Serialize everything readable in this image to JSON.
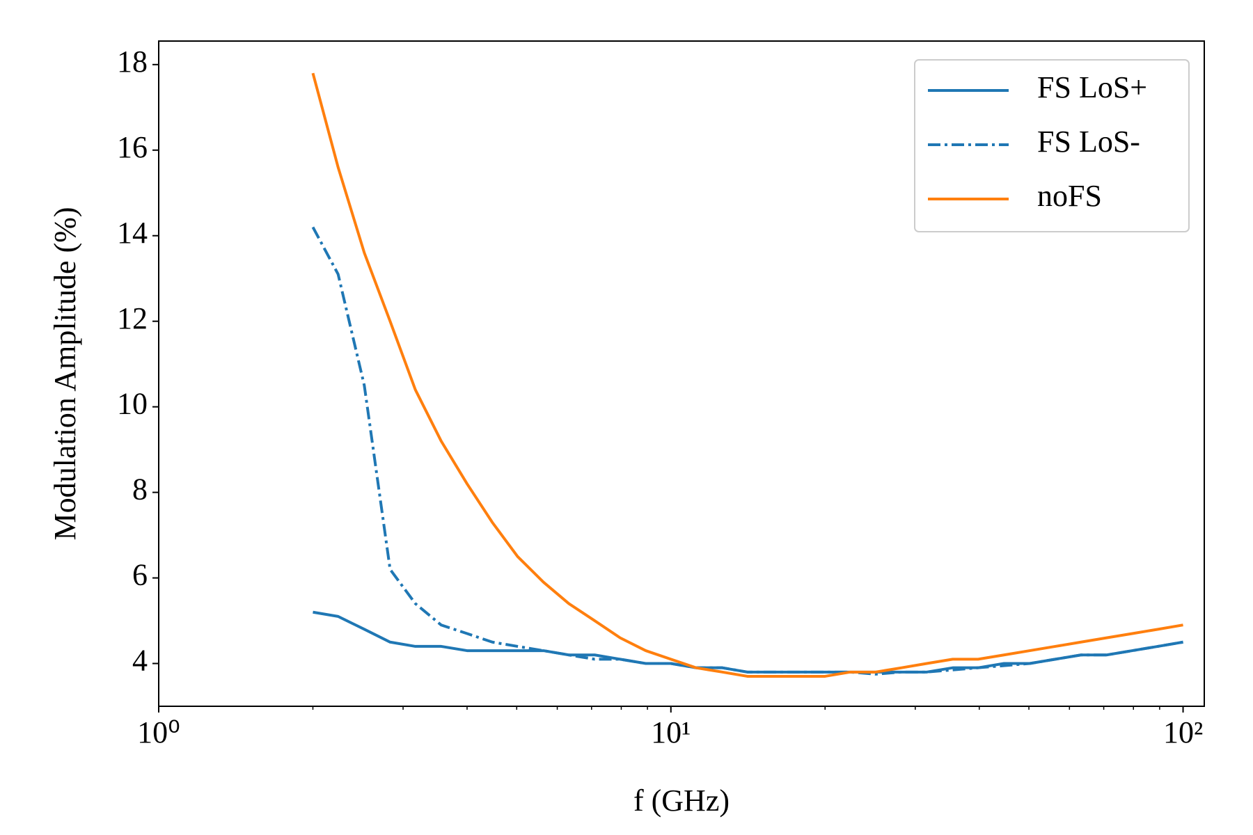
{
  "chart_data": {
    "type": "line",
    "x_label": "f (GHz)",
    "y_label": "Modulation Amplitude (%)",
    "x": [
      2,
      2.24,
      2.52,
      2.83,
      3.17,
      3.56,
      4,
      4.48,
      5.02,
      5.64,
      6.32,
      7.1,
      7.96,
      8.93,
      10,
      11.2,
      12.6,
      14.1,
      15.9,
      17.8,
      20,
      22.4,
      25.1,
      28.2,
      31.6,
      35.5,
      39.8,
      44.7,
      50.2,
      56.3,
      63.2,
      70.9,
      79.6,
      89.3,
      100
    ],
    "series": [
      {
        "name": "FS LoS+",
        "color": "#1f77b4",
        "dash": "solid",
        "values": [
          5.2,
          5.1,
          4.8,
          4.5,
          4.4,
          4.4,
          4.3,
          4.3,
          4.3,
          4.3,
          4.2,
          4.2,
          4.1,
          4.0,
          4.0,
          3.9,
          3.9,
          3.8,
          3.8,
          3.8,
          3.8,
          3.8,
          3.8,
          3.8,
          3.8,
          3.9,
          3.9,
          4.0,
          4.0,
          4.1,
          4.2,
          4.2,
          4.3,
          4.4,
          4.5
        ]
      },
      {
        "name": "FS LoS-",
        "color": "#1f77b4",
        "dash": "dashdot",
        "values": [
          14.2,
          13.1,
          10.5,
          6.2,
          5.4,
          4.9,
          4.7,
          4.5,
          4.4,
          4.3,
          4.2,
          4.1,
          4.1,
          4.0,
          4.0,
          3.9,
          3.9,
          3.8,
          3.8,
          3.8,
          3.8,
          3.8,
          3.75,
          3.8,
          3.8,
          3.85,
          3.9,
          3.95,
          4.0,
          4.1,
          4.2,
          4.2,
          4.3,
          4.4,
          4.5
        ]
      },
      {
        "name": "noFS",
        "color": "#ff7f0e",
        "dash": "solid",
        "values": [
          17.8,
          15.6,
          13.6,
          12.0,
          10.4,
          9.2,
          8.2,
          7.3,
          6.5,
          5.9,
          5.4,
          5.0,
          4.6,
          4.3,
          4.1,
          3.9,
          3.8,
          3.7,
          3.7,
          3.7,
          3.7,
          3.8,
          3.8,
          3.9,
          4.0,
          4.1,
          4.1,
          4.2,
          4.3,
          4.4,
          4.5,
          4.6,
          4.7,
          4.8,
          4.9
        ]
      }
    ],
    "xlog": true,
    "xlim": [
      1,
      110
    ],
    "xticks": [
      {
        "value": 1,
        "label": "10⁰"
      },
      {
        "value": 10,
        "label": "10¹"
      },
      {
        "value": 100,
        "label": "10²"
      }
    ],
    "xminorticks": [
      2,
      3,
      4,
      5,
      6,
      7,
      8,
      9,
      20,
      30,
      40,
      50,
      60,
      70,
      80,
      90
    ],
    "ylim": [
      3,
      18.55
    ],
    "yticks": [
      4,
      6,
      8,
      10,
      12,
      14,
      16,
      18
    ],
    "legend": "upper right",
    "grid": false
  }
}
